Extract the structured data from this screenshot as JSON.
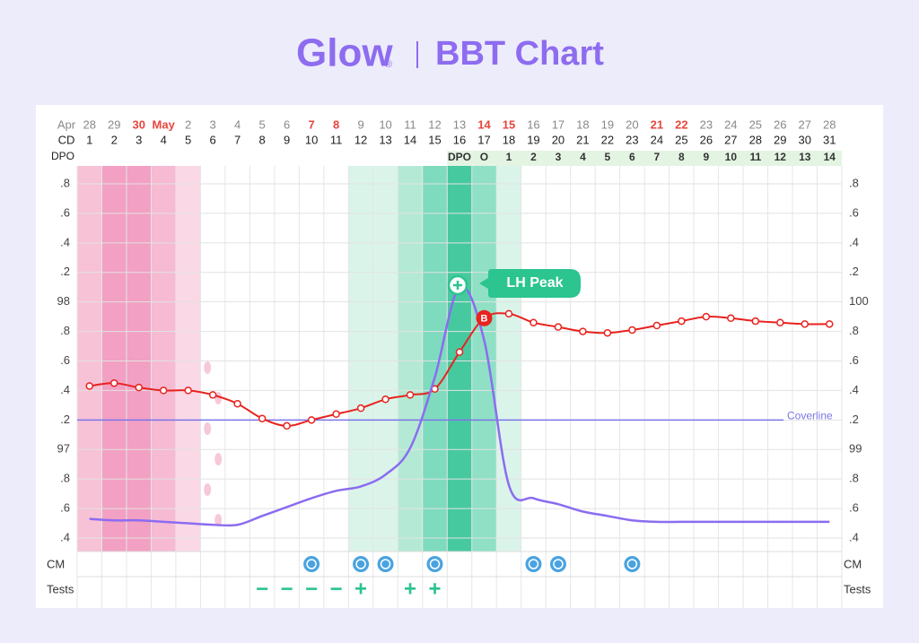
{
  "header": {
    "logo": "Glow",
    "reg": "®"
  },
  "chart_data": {
    "type": "line",
    "title": "BBT Chart",
    "month_label": "Apr",
    "dates": [
      "28",
      "29",
      "30",
      "May",
      "2",
      "3",
      "4",
      "5",
      "6",
      "7",
      "8",
      "9",
      "10",
      "11",
      "12",
      "13",
      "14",
      "15",
      "16",
      "17",
      "18",
      "19",
      "20",
      "21",
      "22",
      "23",
      "24",
      "25",
      "26",
      "27",
      "28"
    ],
    "date_colors": [
      "#888",
      "#888",
      "#e8453c",
      "#e8453c",
      "#888",
      "#888",
      "#888",
      "#888",
      "#888",
      "#e8453c",
      "#e8453c",
      "#888",
      "#888",
      "#888",
      "#888",
      "#888",
      "#e8453c",
      "#e8453c",
      "#888",
      "#888",
      "#888",
      "#888",
      "#888",
      "#e8453c",
      "#e8453c",
      "#888",
      "#888",
      "#888",
      "#888",
      "#888",
      "#888"
    ],
    "cd_label": "CD",
    "categories": [
      1,
      2,
      3,
      4,
      5,
      6,
      7,
      8,
      9,
      10,
      11,
      12,
      13,
      14,
      15,
      16,
      17,
      18,
      19,
      20,
      21,
      22,
      23,
      24,
      25,
      26,
      27,
      28,
      29,
      30,
      31
    ],
    "dpo_label": "DPO",
    "dpo": [
      null,
      null,
      null,
      null,
      null,
      null,
      null,
      null,
      null,
      null,
      null,
      null,
      null,
      null,
      null,
      "DPO",
      "O",
      1,
      2,
      3,
      4,
      5,
      6,
      7,
      8,
      9,
      10,
      11,
      12,
      13,
      14
    ],
    "ylim": [
      96.4,
      98.8
    ],
    "yticks": [
      {
        "value": 96.4,
        "label": ".4"
      },
      {
        "value": 96.6,
        "label": ".6"
      },
      {
        "value": 96.8,
        "label": ".8"
      },
      97,
      {
        "value": 97.2,
        "label": ".2"
      },
      {
        "value": 97.4,
        "label": ".4"
      },
      {
        "value": 97.6,
        "label": ".6"
      },
      {
        "value": 97.8,
        "label": ".8"
      },
      98,
      {
        "value": 98.2,
        "label": ".2"
      },
      {
        "value": 98.4,
        "label": ".4"
      },
      {
        "value": 98.6,
        "label": ".6"
      },
      {
        "value": 98.8,
        "label": ".8"
      }
    ],
    "y2lim": [
      98.4,
      100.8
    ],
    "y2ticks": [
      {
        "value": 98.4,
        "label": ".4"
      },
      {
        "value": 98.6,
        "label": ".6"
      },
      {
        "value": 98.8,
        "label": ".8"
      },
      99,
      {
        "value": 99.2,
        "label": ".2"
      },
      {
        "value": 99.4,
        "label": ".4"
      },
      {
        "value": 99.6,
        "label": ".6"
      },
      {
        "value": 99.8,
        "label": ".8"
      },
      100,
      {
        "value": 100.2,
        "label": ".2"
      },
      {
        "value": 100.4,
        "label": ".4"
      },
      {
        "value": 100.6,
        "label": ".6"
      },
      {
        "value": 100.8,
        "label": ".8"
      }
    ],
    "grid": true,
    "series": [
      {
        "color": "#e8231f",
        "values": [
          97.43,
          97.45,
          97.42,
          97.4,
          97.4,
          97.37,
          97.31,
          97.21,
          97.16,
          97.2,
          97.24,
          97.28,
          97.34,
          97.37,
          97.41,
          97.66,
          97.89,
          97.92,
          97.86,
          97.83,
          97.8,
          97.79,
          97.81,
          97.84,
          97.87,
          97.9,
          97.89,
          97.87,
          97.86,
          97.85,
          97.85
        ]
      },
      {
        "color": "#8b6cf0",
        "axis": "y2",
        "values": [
          98.53,
          98.52,
          98.52,
          98.51,
          98.5,
          98.49,
          98.49,
          98.55,
          98.61,
          98.67,
          98.72,
          98.75,
          98.83,
          99.01,
          99.49,
          100.1,
          99.74,
          98.76,
          98.67,
          98.63,
          98.58,
          98.55,
          98.52,
          98.51,
          98.51,
          98.51,
          98.51,
          98.51,
          98.51,
          98.51,
          98.51
        ]
      }
    ],
    "coverline": {
      "value": 97.2,
      "label": "Coverline",
      "color": "#7b74e8"
    },
    "annotations": {
      "lh_peak": "LH Peak",
      "ovulation": "B"
    },
    "rows": {
      "cm": "CM",
      "tests": "Tests"
    },
    "tests": [
      null,
      null,
      null,
      null,
      null,
      null,
      null,
      "−",
      "−",
      "−",
      "−",
      "+",
      null,
      "+",
      "+",
      null,
      null,
      null,
      null,
      null,
      null,
      null,
      null,
      null,
      null,
      null,
      null,
      null,
      null,
      null,
      null
    ]
  }
}
